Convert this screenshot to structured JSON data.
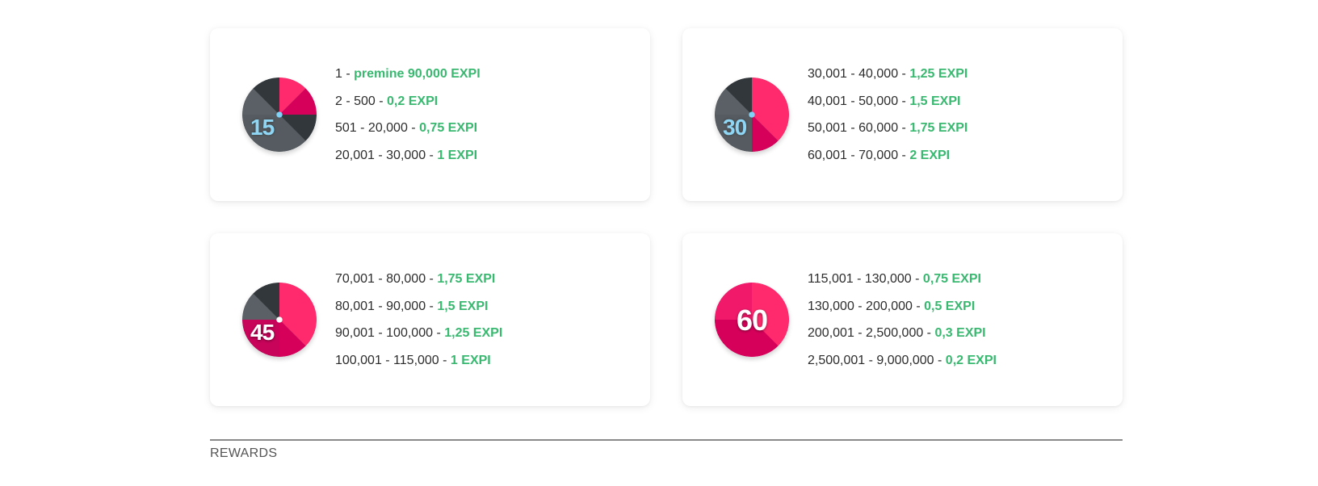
{
  "cards": [
    {
      "timer": "15",
      "rows": [
        {
          "range": "1",
          "reward": "premine 90,000 EXPI"
        },
        {
          "range": "2 - 500",
          "reward": "0,2 EXPI"
        },
        {
          "range": "501 - 20,000",
          "reward": "0,75 EXPI"
        },
        {
          "range": "20,001 - 30,000",
          "reward": "1 EXPI"
        }
      ]
    },
    {
      "timer": "30",
      "rows": [
        {
          "range": "30,001 - 40,000",
          "reward": "1,25 EXPI"
        },
        {
          "range": "40,001 - 50,000",
          "reward": "1,5 EXPI"
        },
        {
          "range": "50,001 - 60,000",
          "reward": "1,75 EXPI"
        },
        {
          "range": "60,001 - 70,000",
          "reward": "2 EXPI"
        }
      ]
    },
    {
      "timer": "45",
      "rows": [
        {
          "range": "70,001 - 80,000",
          "reward": "1,75 EXPI"
        },
        {
          "range": "80,001 - 90,000",
          "reward": "1,5 EXPI"
        },
        {
          "range": "90,001 - 100,000",
          "reward": "1,25 EXPI"
        },
        {
          "range": "100,001 - 115,000",
          "reward": "1 EXPI"
        }
      ]
    },
    {
      "timer": "60",
      "rows": [
        {
          "range": "115,001 - 130,000",
          "reward": "0,75 EXPI"
        },
        {
          "range": "130,000 - 200,000",
          "reward": "0,5 EXPI"
        },
        {
          "range": "200,001 - 2,500,000",
          "reward": "0,3 EXPI"
        },
        {
          "range": "2,500,001 - 9,000,000",
          "reward": "0,2 EXPI"
        }
      ]
    }
  ],
  "separator": " - ",
  "colors": {
    "reward": "#39b870",
    "pink": "#ff2a6d",
    "pink_dark": "#d6005a",
    "slate": "#555b60",
    "slate_dark": "#32373b",
    "center_dot": "#7fd3f7"
  },
  "section_title": "REWARDS"
}
